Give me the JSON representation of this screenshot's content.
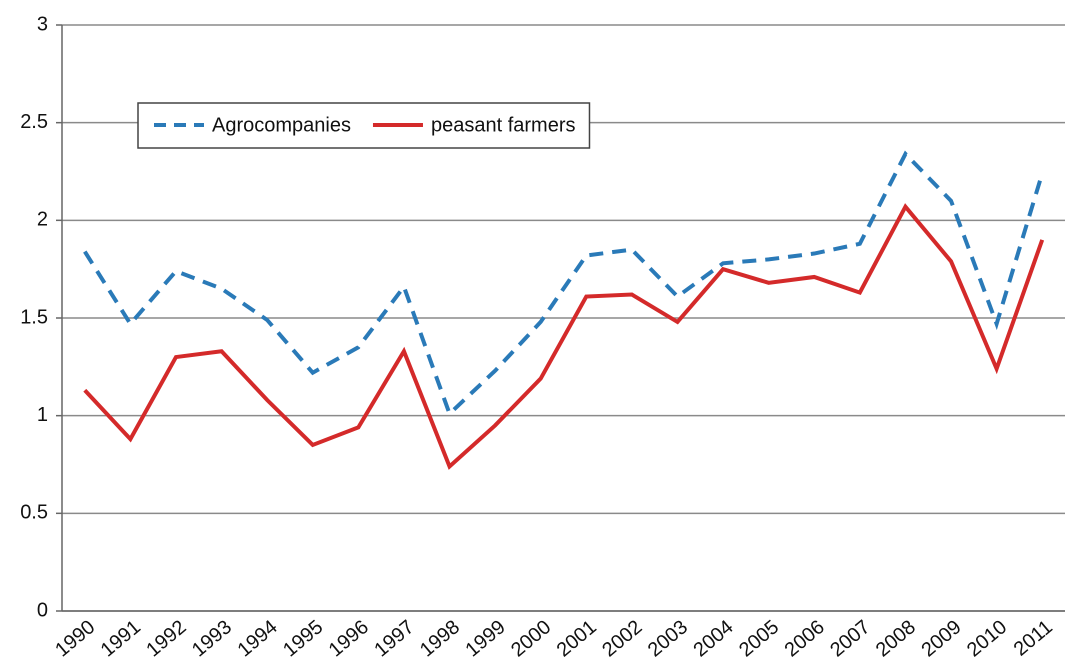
{
  "chart_data": {
    "type": "line",
    "categories": [
      "1990",
      "1991",
      "1992",
      "1993",
      "1994",
      "1995",
      "1996",
      "1997",
      "1998",
      "1999",
      "2000",
      "2001",
      "2002",
      "2003",
      "2004",
      "2005",
      "2006",
      "2007",
      "2008",
      "2009",
      "2010",
      "2011"
    ],
    "series": [
      {
        "name": "Agrocompanies",
        "color": "#2a7ab8",
        "style": "dashed",
        "values": [
          1.84,
          1.47,
          1.74,
          1.65,
          1.49,
          1.22,
          1.35,
          1.66,
          1.01,
          1.23,
          1.48,
          1.82,
          1.85,
          1.61,
          1.78,
          1.8,
          1.83,
          1.88,
          2.34,
          2.1,
          1.47,
          2.24
        ]
      },
      {
        "name": "peasant farmers",
        "color": "#d42a2a",
        "style": "solid",
        "values": [
          1.13,
          0.88,
          1.3,
          1.33,
          1.08,
          0.85,
          0.94,
          1.33,
          0.74,
          0.95,
          1.19,
          1.61,
          1.62,
          1.48,
          1.75,
          1.68,
          1.71,
          1.63,
          2.07,
          1.79,
          1.24,
          1.9
        ]
      }
    ],
    "ylim": [
      0,
      3
    ],
    "yticks": [
      0,
      0.5,
      1,
      1.5,
      2,
      2.5,
      3
    ],
    "grid": true,
    "legend": "upper left"
  }
}
